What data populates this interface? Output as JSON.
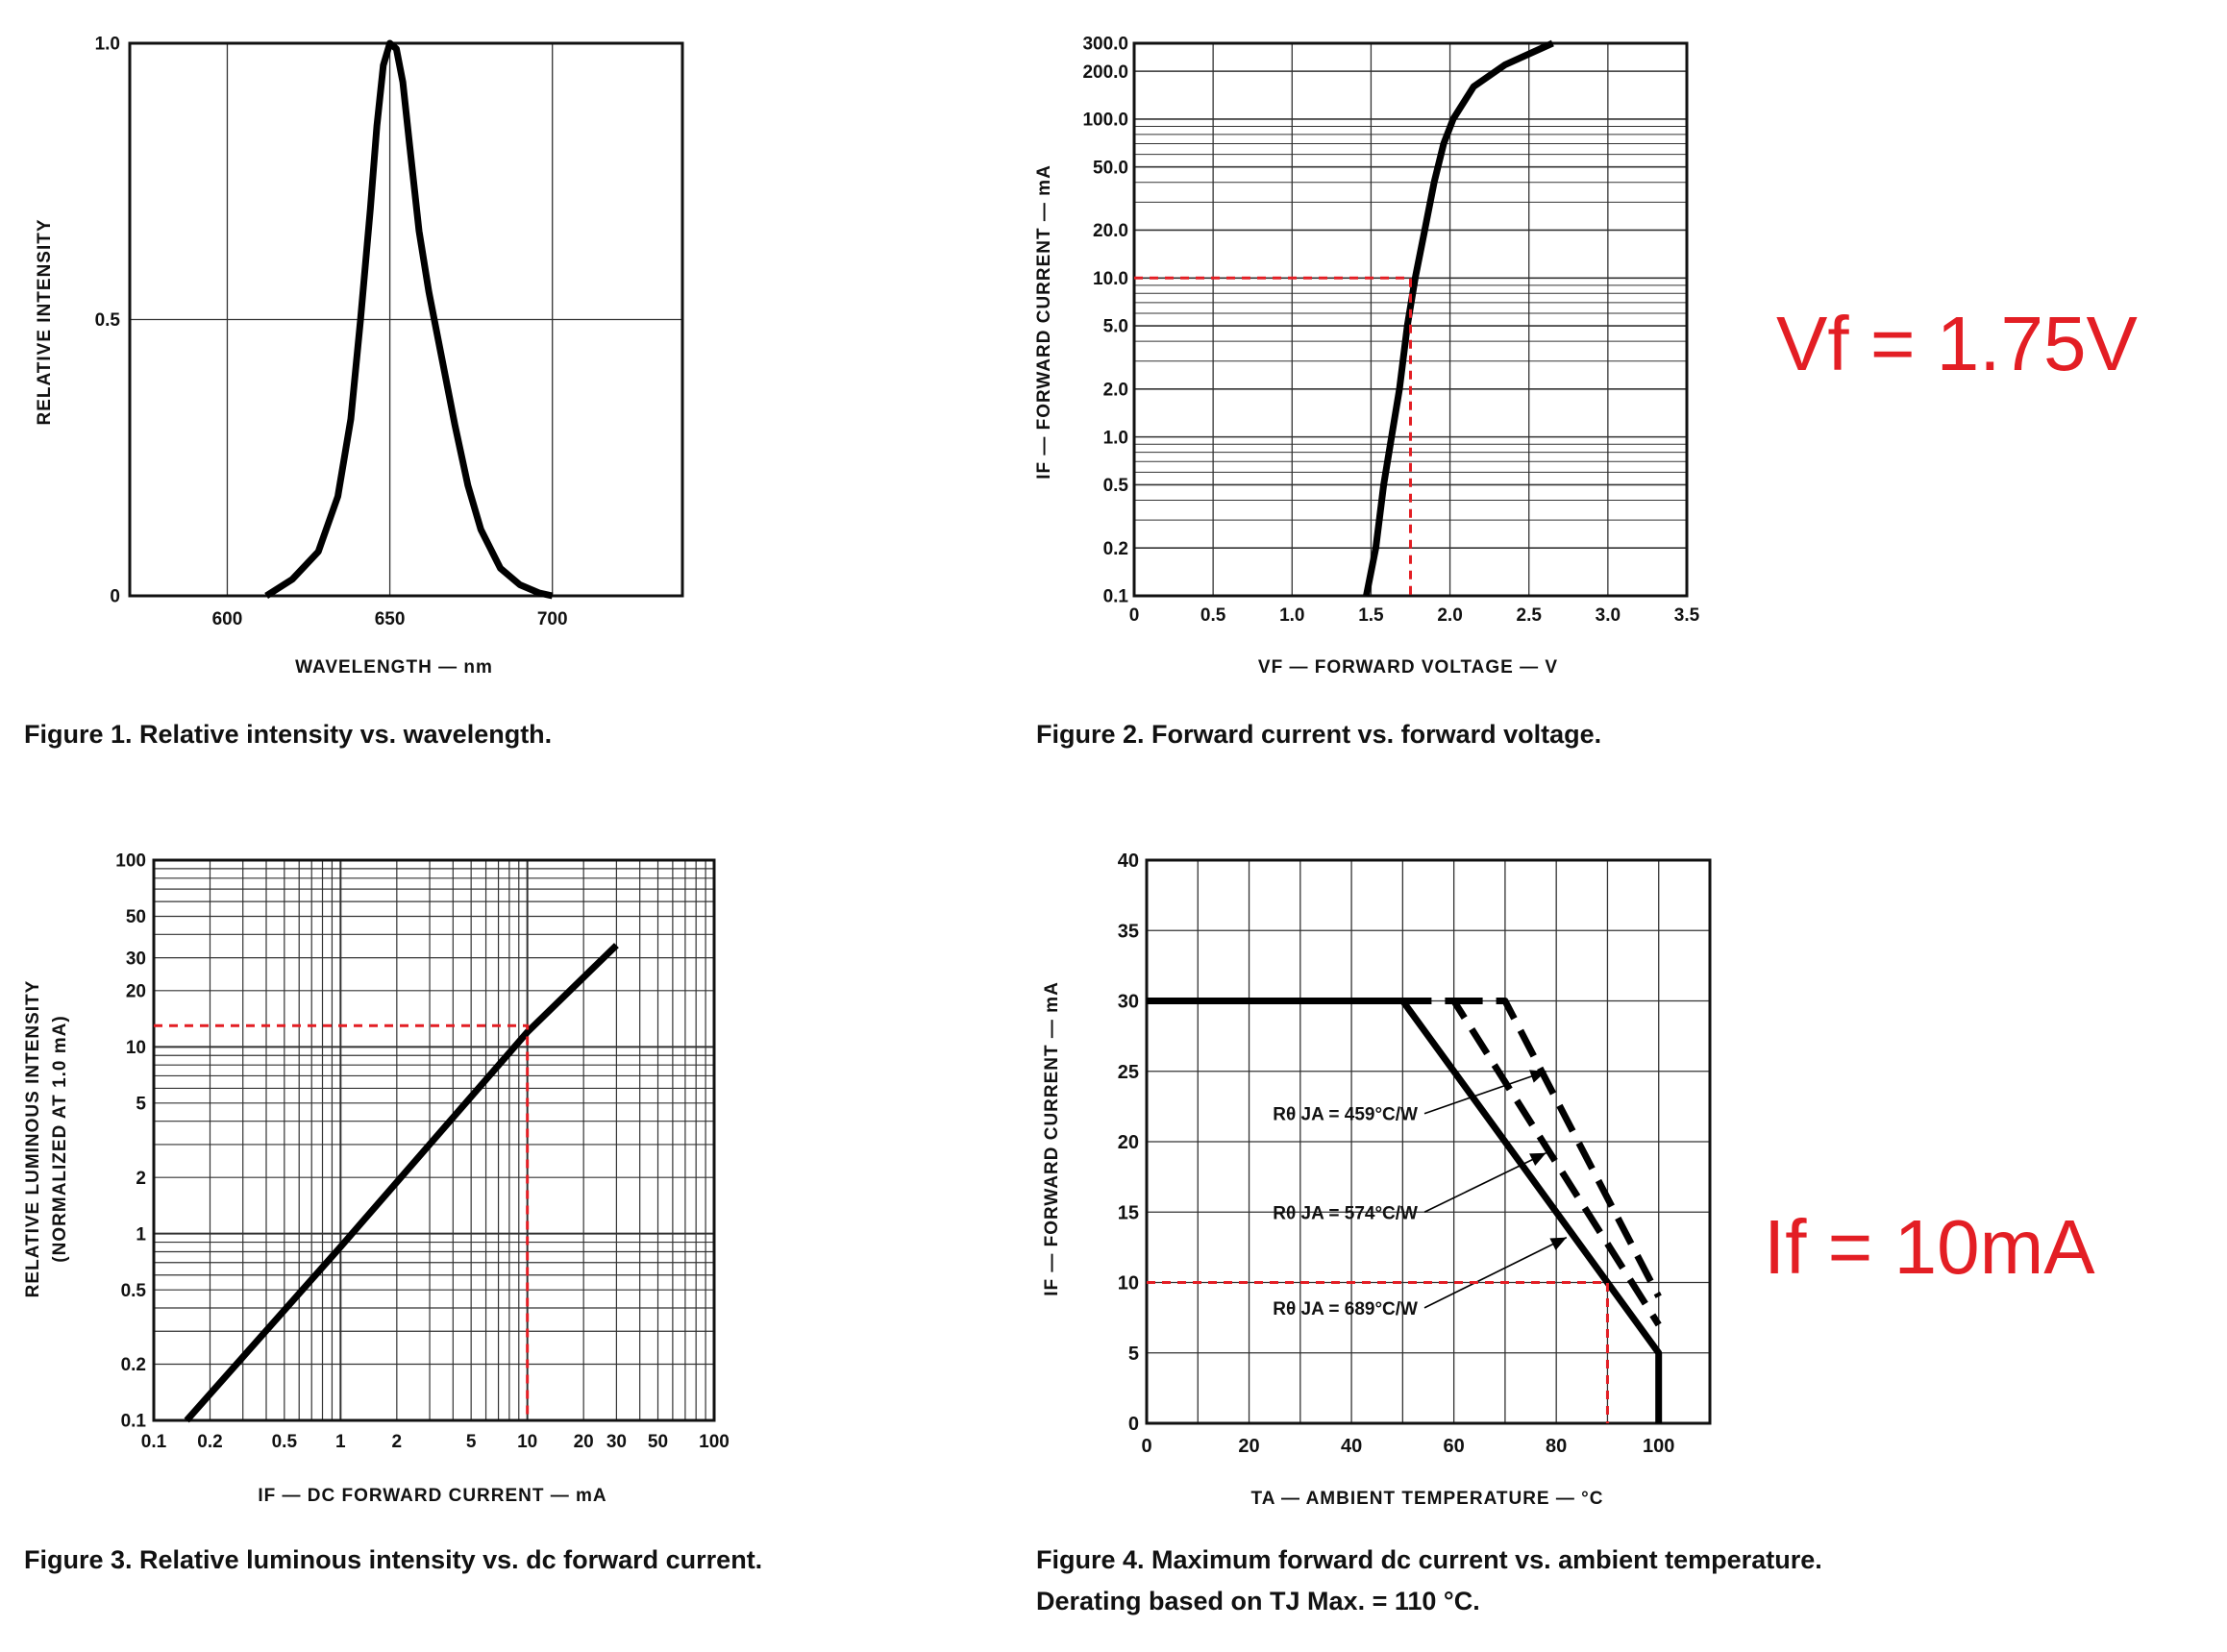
{
  "annotations": {
    "vf": "Vf = 1.75V",
    "if": "If = 10mA",
    "color": "#e31e24"
  },
  "chart_data": [
    {
      "type": "line",
      "caption": "Figure 1. Relative intensity vs. wavelength.",
      "xlabel": "WAVELENGTH — nm",
      "ylabel": "RELATIVE INTENSITY",
      "xlim": [
        570,
        740
      ],
      "ylim": [
        0,
        1
      ],
      "xticks": [
        600,
        650,
        700
      ],
      "xtick_labels": [
        "600",
        "650",
        "700"
      ],
      "yticks": [
        0,
        0.5,
        1
      ],
      "ytick_labels": [
        "0",
        "0.5",
        "1.0"
      ],
      "grid": true,
      "series": [
        {
          "x": [
            612,
            620,
            628,
            634,
            638,
            641,
            644,
            646,
            648,
            650,
            652,
            654,
            656,
            659,
            662,
            666,
            670,
            674,
            678,
            684,
            690,
            696,
            700
          ],
          "y": [
            0,
            0.03,
            0.08,
            0.18,
            0.32,
            0.5,
            0.7,
            0.85,
            0.96,
            1.0,
            0.99,
            0.93,
            0.82,
            0.66,
            0.55,
            0.43,
            0.31,
            0.2,
            0.12,
            0.05,
            0.02,
            0.005,
            0
          ]
        }
      ]
    },
    {
      "type": "line",
      "caption": "Figure 2. Forward current vs. forward voltage.",
      "xlabel": "VF — FORWARD VOLTAGE — V",
      "ylabel": "IF — FORWARD CURRENT — mA",
      "xlim": [
        0,
        3.5
      ],
      "ylim": [
        0.1,
        300
      ],
      "yscale": "log",
      "xticks": [
        0,
        0.5,
        1,
        1.5,
        2,
        2.5,
        3,
        3.5
      ],
      "xtick_labels": [
        "0",
        "0.5",
        "1.0",
        "1.5",
        "2.0",
        "2.5",
        "3.0",
        "3.5"
      ],
      "yticks": [
        0.1,
        0.2,
        0.5,
        1,
        2,
        5,
        10,
        20,
        50,
        100,
        200,
        300
      ],
      "ytick_labels": [
        "0.1",
        "0.2",
        "0.5",
        "1.0",
        "2.0",
        "5.0",
        "10.0",
        "20.0",
        "50.0",
        "100.0",
        "200.0",
        "300.0"
      ],
      "grid": true,
      "series": [
        {
          "x": [
            1.47,
            1.53,
            1.58,
            1.63,
            1.68,
            1.73,
            1.78,
            1.84,
            1.9,
            1.96,
            2.02,
            2.15,
            2.35,
            2.65
          ],
          "y": [
            0.1,
            0.2,
            0.5,
            1,
            2,
            5,
            10,
            20,
            40,
            70,
            100,
            160,
            220,
            300
          ]
        }
      ],
      "reference": {
        "x": 1.75,
        "y": 10
      }
    },
    {
      "type": "line",
      "caption": "Figure 3. Relative luminous intensity vs. dc forward current.",
      "xlabel": "IF — DC FORWARD CURRENT — mA",
      "ylabel": "RELATIVE LUMINOUS INTENSITY",
      "ylabel2": "(NORMALIZED AT 1.0 mA)",
      "xlim": [
        0.1,
        100
      ],
      "ylim": [
        0.1,
        100
      ],
      "xscale": "log",
      "yscale": "log",
      "xticks": [
        0.1,
        0.2,
        0.5,
        1,
        2,
        5,
        10,
        20,
        30,
        50,
        100
      ],
      "xtick_labels": [
        "0.1",
        "0.2",
        "0.5",
        "1",
        "2",
        "5",
        "10",
        "20",
        "30",
        "50",
        "100"
      ],
      "yticks": [
        0.1,
        0.2,
        0.5,
        1,
        2,
        5,
        10,
        20,
        30,
        50,
        100
      ],
      "ytick_labels": [
        "0.1",
        "0.2",
        "0.5",
        "1",
        "2",
        "5",
        "10",
        "20",
        "30",
        "50",
        "100"
      ],
      "grid": true,
      "series": [
        {
          "x": [
            0.15,
            1,
            10,
            30
          ],
          "y": [
            0.1,
            0.85,
            12,
            35
          ]
        }
      ],
      "reference": {
        "x": 10,
        "y": 13
      }
    },
    {
      "type": "line",
      "caption": "Figure 4. Maximum forward dc current vs. ambient temperature.",
      "caption2": "Derating based on TJ Max. = 110 °C.",
      "xlabel": "TA — AMBIENT TEMPERATURE — °C",
      "ylabel": "IF — FORWARD CURRENT — mA",
      "xlim": [
        0,
        110
      ],
      "ylim": [
        0,
        40
      ],
      "xticks": [
        0,
        20,
        40,
        60,
        80,
        100
      ],
      "xtick_labels": [
        "0",
        "20",
        "40",
        "60",
        "80",
        "100"
      ],
      "yticks": [
        0,
        5,
        10,
        15,
        20,
        25,
        30,
        35,
        40
      ],
      "ytick_labels": [
        "0",
        "5",
        "10",
        "15",
        "20",
        "25",
        "30",
        "35",
        "40"
      ],
      "grid": true,
      "series": [
        {
          "name": "Rθ JA = 689°C/W",
          "x": [
            0,
            50,
            100,
            100
          ],
          "y": [
            30,
            30,
            5,
            0
          ],
          "style": "solid"
        },
        {
          "name": "Rθ JA = 574°C/W",
          "x": [
            50,
            60,
            100
          ],
          "y": [
            30,
            30,
            7
          ],
          "style": "dashed"
        },
        {
          "name": "Rθ JA = 459°C/W",
          "x": [
            60,
            70,
            100
          ],
          "y": [
            30,
            30,
            9
          ],
          "style": "dashed"
        }
      ],
      "labels": [
        "Rθ JA = 459°C/W",
        "Rθ JA = 574°C/W",
        "Rθ JA = 689°C/W"
      ],
      "reference": {
        "x": 90,
        "y": 10
      }
    }
  ]
}
